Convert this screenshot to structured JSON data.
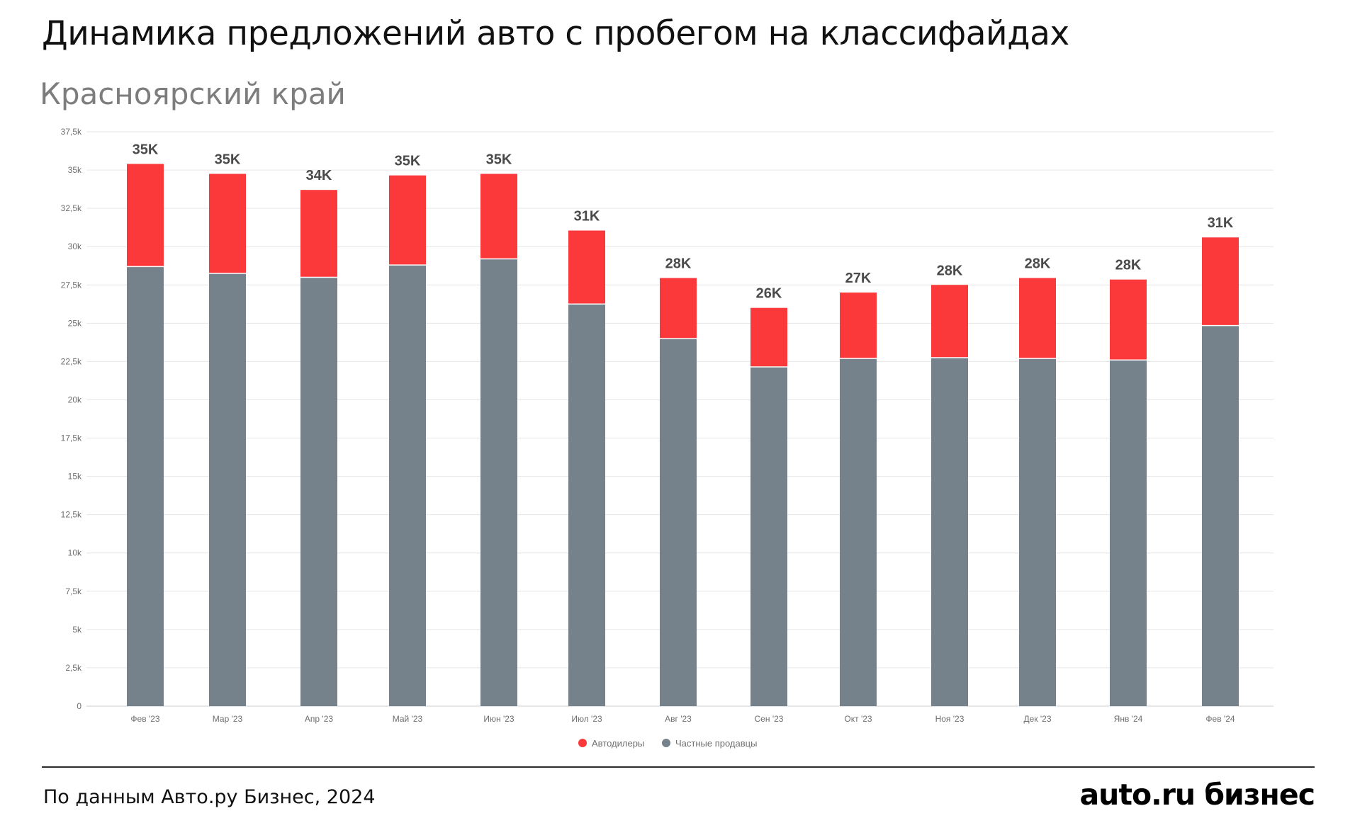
{
  "header": {
    "title": "Динамика предложений авто с пробегом на классифайдах",
    "subtitle": "Красноярский край"
  },
  "footer": {
    "source": "По данным Авто.ру Бизнес, 2024",
    "brand": "auto.ru бизнес"
  },
  "colors": {
    "dealers": "#fb393b",
    "private": "#75828b",
    "grid": "#e6e6e6"
  },
  "chart_data": {
    "type": "bar",
    "stacked": true,
    "categories": [
      "Фев '23",
      "Мар '23",
      "Апр '23",
      "Май '23",
      "Июн '23",
      "Июл '23",
      "Авг '23",
      "Сен '23",
      "Окт '23",
      "Ноя '23",
      "Дек '23",
      "Янв '24",
      "Фев '24"
    ],
    "series": [
      {
        "name": "Частные продавцы",
        "color": "#75828b",
        "values": [
          28700,
          28250,
          28000,
          28800,
          29200,
          26250,
          24000,
          22150,
          22700,
          22750,
          22700,
          22600,
          24850
        ]
      },
      {
        "name": "Автодилеры",
        "color": "#fb393b",
        "values": [
          6700,
          6500,
          5700,
          5850,
          5550,
          4800,
          3950,
          3850,
          4300,
          4750,
          5250,
          5250,
          5750
        ]
      }
    ],
    "total_labels": [
      "35K",
      "35K",
      "34K",
      "35K",
      "35K",
      "31K",
      "28K",
      "26K",
      "27K",
      "28K",
      "28K",
      "28K",
      "31K"
    ],
    "yticks": [
      "0",
      "2,5k",
      "5k",
      "7,5k",
      "10k",
      "12,5k",
      "15k",
      "17,5k",
      "20k",
      "22,5k",
      "25k",
      "27,5k",
      "30k",
      "32,5k",
      "35k",
      "37,5k"
    ],
    "ylim": [
      0,
      37500
    ],
    "ytick_step": 2500,
    "grid": true,
    "legend": {
      "position": "bottom-center",
      "entries": [
        "Автодилеры",
        "Частные продавцы"
      ]
    },
    "title": "Динамика предложений авто с пробегом на классифайдах",
    "subtitle": "Красноярский край",
    "xlabel": "",
    "ylabel": ""
  }
}
